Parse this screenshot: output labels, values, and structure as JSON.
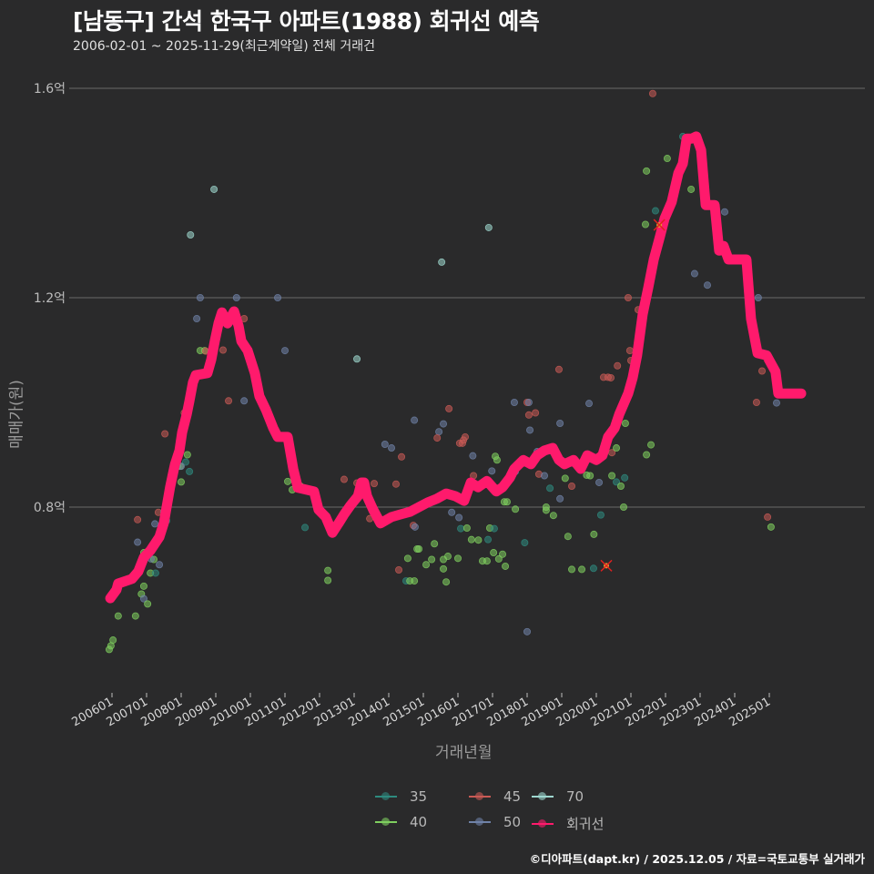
{
  "header": {
    "title": "[남동구] 간석 한국구 아파트(1988) 회귀선 예측",
    "subtitle": "2006-02-01 ~ 2025-11-29(최근계약일) 전체 거래건"
  },
  "footer": "©디아파트(dapt.kr) / 2025.12.05 / 자료=국토교통부 실거래가",
  "colors": {
    "background": "#2a2a2b",
    "grid": "#6a6a6a",
    "regression": "#ff1a6c",
    "35": "#2e8b7f",
    "40": "#7fcf5f",
    "45": "#c95a55",
    "50": "#6f82a8",
    "70": "#9fd8d0"
  },
  "chart_data": {
    "type": "scatter",
    "title": "[남동구] 간석 한국구 아파트(1988) 회귀선 예측",
    "subtitle": "2006-02-01 ~ 2025-11-29(최근계약일) 전체 거래건",
    "xlabel": "거래년월",
    "ylabel": "매매가(원)",
    "x_ticks": [
      "200601",
      "200701",
      "200801",
      "200901",
      "201001",
      "201101",
      "201201",
      "201301",
      "201401",
      "201501",
      "201601",
      "201701",
      "201801",
      "201901",
      "202001",
      "202101",
      "202201",
      "202301",
      "202401",
      "202501"
    ],
    "y_ticks": [
      {
        "value": 0.8,
        "label": "0.8억"
      },
      {
        "value": 1.2,
        "label": "1.2억"
      },
      {
        "value": 1.6,
        "label": "1.6억"
      }
    ],
    "xlim": [
      2005.4,
      2026.2
    ],
    "ylim": [
      0.44,
      1.68
    ],
    "grid": "horizontal",
    "legend_position": "bottom",
    "legend": [
      {
        "key": "35",
        "label": "35"
      },
      {
        "key": "45",
        "label": "45"
      },
      {
        "key": "70",
        "label": "70"
      },
      {
        "key": "40",
        "label": "40"
      },
      {
        "key": "50",
        "label": "50"
      },
      {
        "key": "regression",
        "label": "회귀선"
      }
    ],
    "regression_line": [
      [
        2005.95,
        0.626
      ],
      [
        2006.13,
        0.642
      ],
      [
        2006.18,
        0.654
      ],
      [
        2006.58,
        0.663
      ],
      [
        2006.76,
        0.677
      ],
      [
        2006.92,
        0.704
      ],
      [
        2007.11,
        0.717
      ],
      [
        2007.37,
        0.743
      ],
      [
        2007.5,
        0.77
      ],
      [
        2007.58,
        0.8
      ],
      [
        2007.68,
        0.838
      ],
      [
        2007.82,
        0.882
      ],
      [
        2007.95,
        0.908
      ],
      [
        2008.03,
        0.943
      ],
      [
        2008.16,
        0.977
      ],
      [
        2008.24,
        1.003
      ],
      [
        2008.34,
        1.038
      ],
      [
        2008.42,
        1.052
      ],
      [
        2008.76,
        1.056
      ],
      [
        2008.87,
        1.082
      ],
      [
        2008.97,
        1.117
      ],
      [
        2009.08,
        1.151
      ],
      [
        2009.18,
        1.172
      ],
      [
        2009.34,
        1.151
      ],
      [
        2009.53,
        1.174
      ],
      [
        2009.66,
        1.146
      ],
      [
        2009.74,
        1.117
      ],
      [
        2009.92,
        1.099
      ],
      [
        2010.13,
        1.056
      ],
      [
        2010.26,
        1.012
      ],
      [
        2010.45,
        0.986
      ],
      [
        2010.66,
        0.951
      ],
      [
        2010.79,
        0.934
      ],
      [
        2011.08,
        0.934
      ],
      [
        2011.24,
        0.873
      ],
      [
        2011.37,
        0.837
      ],
      [
        2011.84,
        0.83
      ],
      [
        2011.97,
        0.795
      ],
      [
        2012.18,
        0.781
      ],
      [
        2012.37,
        0.751
      ],
      [
        2012.55,
        0.769
      ],
      [
        2012.71,
        0.786
      ],
      [
        2012.89,
        0.803
      ],
      [
        2013.11,
        0.821
      ],
      [
        2013.21,
        0.847
      ],
      [
        2013.29,
        0.847
      ],
      [
        2013.37,
        0.821
      ],
      [
        2013.55,
        0.795
      ],
      [
        2013.76,
        0.769
      ],
      [
        2014.08,
        0.781
      ],
      [
        2014.34,
        0.786
      ],
      [
        2014.61,
        0.791
      ],
      [
        2014.87,
        0.8
      ],
      [
        2015.13,
        0.809
      ],
      [
        2015.39,
        0.816
      ],
      [
        2015.66,
        0.826
      ],
      [
        2015.92,
        0.821
      ],
      [
        2016.18,
        0.812
      ],
      [
        2016.37,
        0.847
      ],
      [
        2016.58,
        0.838
      ],
      [
        2016.84,
        0.85
      ],
      [
        2017.11,
        0.83
      ],
      [
        2017.29,
        0.838
      ],
      [
        2017.5,
        0.856
      ],
      [
        2017.63,
        0.873
      ],
      [
        2017.89,
        0.89
      ],
      [
        2018.11,
        0.882
      ],
      [
        2018.29,
        0.899
      ],
      [
        2018.5,
        0.908
      ],
      [
        2018.74,
        0.913
      ],
      [
        2018.92,
        0.89
      ],
      [
        2019.08,
        0.882
      ],
      [
        2019.34,
        0.89
      ],
      [
        2019.55,
        0.873
      ],
      [
        2019.74,
        0.899
      ],
      [
        2020.0,
        0.89
      ],
      [
        2020.18,
        0.899
      ],
      [
        2020.34,
        0.934
      ],
      [
        2020.53,
        0.951
      ],
      [
        2020.66,
        0.977
      ],
      [
        2020.92,
        1.017
      ],
      [
        2021.05,
        1.047
      ],
      [
        2021.18,
        1.09
      ],
      [
        2021.34,
        1.168
      ],
      [
        2021.5,
        1.219
      ],
      [
        2021.66,
        1.273
      ],
      [
        2021.84,
        1.317
      ],
      [
        2021.97,
        1.351
      ],
      [
        2022.18,
        1.383
      ],
      [
        2022.37,
        1.438
      ],
      [
        2022.5,
        1.456
      ],
      [
        2022.61,
        1.504
      ],
      [
        2022.76,
        1.504
      ],
      [
        2022.89,
        1.508
      ],
      [
        2023.03,
        1.482
      ],
      [
        2023.16,
        1.377
      ],
      [
        2023.42,
        1.377
      ],
      [
        2023.55,
        1.29
      ],
      [
        2023.68,
        1.299
      ],
      [
        2023.82,
        1.273
      ],
      [
        2024.34,
        1.273
      ],
      [
        2024.47,
        1.16
      ],
      [
        2024.66,
        1.094
      ],
      [
        2024.92,
        1.09
      ],
      [
        2025.18,
        1.059
      ],
      [
        2025.26,
        1.017
      ],
      [
        2025.66,
        1.017
      ],
      [
        2025.92,
        1.017
      ]
    ],
    "points": [
      [
        "40",
        2005.92,
        0.528
      ],
      [
        "40",
        2005.97,
        0.535
      ],
      [
        "40",
        2006.03,
        0.546
      ],
      [
        "40",
        2006.18,
        0.592
      ],
      [
        "40",
        2006.68,
        0.592
      ],
      [
        "40",
        2006.92,
        0.649
      ],
      [
        "40",
        2006.85,
        0.634
      ],
      [
        "50",
        2006.92,
        0.625
      ],
      [
        "40",
        2007.03,
        0.615
      ],
      [
        "40",
        2007.11,
        0.674
      ],
      [
        "40",
        2007.21,
        0.7
      ],
      [
        "35",
        2007.26,
        0.674
      ],
      [
        "50",
        2007.13,
        0.701
      ],
      [
        "50",
        2007.37,
        0.69
      ],
      [
        "50",
        2006.74,
        0.733
      ],
      [
        "45",
        2006.74,
        0.776
      ],
      [
        "40",
        2006.92,
        0.713
      ],
      [
        "50",
        2007.24,
        0.768
      ],
      [
        "45",
        2007.34,
        0.79
      ],
      [
        "50",
        2007.5,
        0.791
      ],
      [
        "40",
        2007.66,
        0.836
      ],
      [
        "40",
        2007.68,
        0.848
      ],
      [
        "35",
        2007.58,
        0.774
      ],
      [
        "40",
        2008.0,
        0.848
      ],
      [
        "45",
        2007.53,
        0.94
      ],
      [
        "40",
        2007.9,
        0.878
      ],
      [
        "40",
        2007.97,
        0.878
      ],
      [
        "35",
        2008.13,
        0.886
      ],
      [
        "50",
        2008.0,
        0.878
      ],
      [
        "40",
        2008.18,
        0.9
      ],
      [
        "45",
        2008.09,
        0.98
      ],
      [
        "35",
        2008.24,
        0.868
      ],
      [
        "40",
        2008.55,
        1.099
      ],
      [
        "40",
        2008.68,
        1.099
      ],
      [
        "45",
        2008.71,
        1.098
      ],
      [
        "50",
        2008.45,
        1.16
      ],
      [
        "50",
        2008.55,
        1.2
      ],
      [
        "70",
        2008.27,
        1.32
      ],
      [
        "70",
        2008.95,
        1.407
      ],
      [
        "45",
        2009.21,
        1.1
      ],
      [
        "50",
        2009.6,
        1.2
      ],
      [
        "45",
        2009.37,
        1.003
      ],
      [
        "50",
        2009.82,
        1.003
      ],
      [
        "45",
        2009.82,
        1.16
      ],
      [
        "50",
        2010.79,
        1.2
      ],
      [
        "50",
        2011.0,
        1.099
      ],
      [
        "45",
        2011.16,
        0.9
      ],
      [
        "40",
        2011.08,
        0.849
      ],
      [
        "40",
        2011.45,
        0.84
      ],
      [
        "40",
        2011.21,
        0.833
      ],
      [
        "40",
        2011.42,
        0.84
      ],
      [
        "35",
        2011.58,
        0.761
      ],
      [
        "40",
        2012.24,
        0.679
      ],
      [
        "40",
        2012.24,
        0.66
      ],
      [
        "45",
        2012.55,
        0.772
      ],
      [
        "45",
        2012.71,
        0.853
      ],
      [
        "35",
        2012.63,
        0.773
      ],
      [
        "45",
        2013.08,
        0.846
      ],
      [
        "45",
        2013.13,
        0.831
      ],
      [
        "45",
        2013.58,
        0.845
      ],
      [
        "45",
        2013.45,
        0.778
      ],
      [
        "45",
        2013.79,
        0.774
      ],
      [
        "70",
        2013.08,
        1.083
      ],
      [
        "50",
        2013.89,
        0.92
      ],
      [
        "50",
        2014.08,
        0.913
      ],
      [
        "45",
        2014.21,
        0.844
      ],
      [
        "45",
        2014.37,
        0.896
      ],
      [
        "45",
        2014.29,
        0.68
      ],
      [
        "45",
        2014.71,
        0.765
      ],
      [
        "35",
        2014.5,
        0.659
      ],
      [
        "40",
        2014.61,
        0.659
      ],
      [
        "40",
        2014.74,
        0.659
      ],
      [
        "40",
        2014.82,
        0.72
      ],
      [
        "40",
        2014.87,
        0.72
      ],
      [
        "40",
        2014.55,
        0.702
      ],
      [
        "50",
        2014.76,
        0.762
      ],
      [
        "40",
        2015.08,
        0.69
      ],
      [
        "40",
        2015.24,
        0.7
      ],
      [
        "40",
        2015.32,
        0.73
      ],
      [
        "40",
        2015.58,
        0.682
      ],
      [
        "40",
        2015.66,
        0.657
      ],
      [
        "40",
        2015.71,
        0.706
      ],
      [
        "40",
        2015.58,
        0.7
      ],
      [
        "50",
        2014.74,
        0.966
      ],
      [
        "50",
        2015.58,
        0.959
      ],
      [
        "50",
        2015.45,
        0.944
      ],
      [
        "45",
        2015.4,
        0.932
      ],
      [
        "45",
        2015.74,
        0.988
      ],
      [
        "45",
        2016.21,
        0.934
      ],
      [
        "45",
        2016.05,
        0.922
      ],
      [
        "45",
        2016.13,
        0.922
      ],
      [
        "45",
        2016.16,
        0.928
      ],
      [
        "45",
        2016.45,
        0.86
      ],
      [
        "50",
        2015.82,
        0.79
      ],
      [
        "50",
        2016.03,
        0.78
      ],
      [
        "35",
        2016.08,
        0.759
      ],
      [
        "40",
        2016.0,
        0.702
      ],
      [
        "40",
        2016.26,
        0.76
      ],
      [
        "40",
        2016.39,
        0.738
      ],
      [
        "40",
        2016.59,
        0.737
      ],
      [
        "40",
        2016.71,
        0.697
      ],
      [
        "40",
        2016.84,
        0.697
      ],
      [
        "40",
        2016.92,
        0.76
      ],
      [
        "35",
        2016.87,
        0.738
      ],
      [
        "35",
        2017.05,
        0.759
      ],
      [
        "40",
        2017.29,
        0.71
      ],
      [
        "40",
        2017.37,
        0.687
      ],
      [
        "40",
        2017.03,
        0.713
      ],
      [
        "40",
        2017.18,
        0.701
      ],
      [
        "50",
        2016.43,
        0.898
      ],
      [
        "70",
        2015.53,
        1.268
      ],
      [
        "70",
        2016.89,
        1.334
      ],
      [
        "50",
        2017.63,
        1.0
      ],
      [
        "40",
        2017.08,
        0.897
      ],
      [
        "40",
        2017.13,
        0.89
      ],
      [
        "40",
        2017.34,
        0.81
      ],
      [
        "40",
        2017.42,
        0.81
      ],
      [
        "50",
        2016.98,
        0.869
      ],
      [
        "40",
        2017.66,
        0.796
      ],
      [
        "35",
        2017.93,
        0.732
      ],
      [
        "50",
        2018.0,
        0.562
      ],
      [
        "50",
        2017.66,
        0.868
      ],
      [
        "45",
        2018.0,
        1.0
      ],
      [
        "45",
        2018.05,
        0.976
      ],
      [
        "50",
        2018.05,
        1.0
      ],
      [
        "45",
        2018.24,
        0.98
      ],
      [
        "50",
        2018.08,
        0.947
      ],
      [
        "50",
        2018.29,
        0.906
      ],
      [
        "45",
        2018.34,
        0.863
      ],
      [
        "50",
        2018.5,
        0.86
      ],
      [
        "40",
        2018.55,
        0.8
      ],
      [
        "40",
        2018.55,
        0.794
      ],
      [
        "40",
        2018.76,
        0.784
      ],
      [
        "35",
        2018.66,
        0.836
      ],
      [
        "50",
        2018.95,
        0.816
      ],
      [
        "45",
        2018.92,
        1.063
      ],
      [
        "50",
        2018.95,
        0.96
      ],
      [
        "45",
        2019.03,
        0.887
      ],
      [
        "40",
        2019.1,
        0.855
      ],
      [
        "45",
        2019.29,
        0.84
      ],
      [
        "40",
        2019.29,
        0.681
      ],
      [
        "40",
        2019.58,
        0.681
      ],
      [
        "35",
        2019.92,
        0.683
      ],
      [
        "40",
        2019.93,
        0.748
      ],
      [
        "40",
        2019.18,
        0.744
      ],
      [
        "40",
        2019.72,
        0.861
      ],
      [
        "40",
        2019.82,
        0.86
      ],
      [
        "35",
        2020.13,
        0.785
      ],
      [
        "50",
        2019.79,
        0.998
      ],
      [
        "50",
        2020.08,
        0.847
      ],
      [
        "45",
        2020.21,
        1.048
      ],
      [
        "45",
        2020.34,
        1.048
      ],
      [
        "45",
        2020.42,
        1.047
      ],
      [
        "45",
        2020.61,
        1.07
      ],
      [
        "45",
        2020.45,
        0.904
      ],
      [
        "40",
        2020.45,
        0.86
      ],
      [
        "35",
        2020.58,
        0.848
      ],
      [
        "40",
        2020.71,
        0.84
      ],
      [
        "40",
        2020.79,
        0.8
      ],
      [
        "35",
        2020.82,
        0.856
      ],
      [
        "40",
        2020.58,
        0.913
      ],
      [
        "40",
        2020.84,
        0.96
      ],
      [
        "45",
        2020.92,
        1.2
      ],
      [
        "45",
        2020.97,
        1.099
      ],
      [
        "45",
        2021.0,
        1.08
      ],
      [
        "45",
        2021.05,
        1.06
      ],
      [
        "45",
        2021.21,
        1.177
      ],
      [
        "50",
        2020.89,
        1.016
      ],
      [
        "40",
        2021.45,
        0.9
      ],
      [
        "40",
        2021.58,
        0.919
      ],
      [
        "40",
        2021.45,
        1.442
      ],
      [
        "40",
        2021.42,
        1.34
      ],
      [
        "35",
        2021.71,
        1.366
      ],
      [
        "45",
        2021.95,
        1.34
      ],
      [
        "45",
        2021.63,
        1.59
      ],
      [
        "35",
        2022.5,
        1.508
      ],
      [
        "40",
        2022.74,
        1.407
      ],
      [
        "40",
        2022.05,
        1.466
      ],
      [
        "50",
        2022.84,
        1.246
      ],
      [
        "50",
        2023.21,
        1.224
      ],
      [
        "50",
        2023.71,
        1.364
      ],
      [
        "50",
        2024.68,
        1.2
      ],
      [
        "45",
        2024.68,
        1.099
      ],
      [
        "45",
        2024.79,
        1.06
      ],
      [
        "45",
        2024.63,
        1.0
      ],
      [
        "50",
        2025.21,
        0.999
      ],
      [
        "45",
        2024.95,
        0.781
      ],
      [
        "40",
        2025.05,
        0.762
      ]
    ],
    "highlight_marker": [
      {
        "x": 2020.29,
        "y": 0.688,
        "symbol": "x"
      },
      {
        "x": 2021.82,
        "y": 1.339,
        "symbol": "x"
      }
    ]
  }
}
